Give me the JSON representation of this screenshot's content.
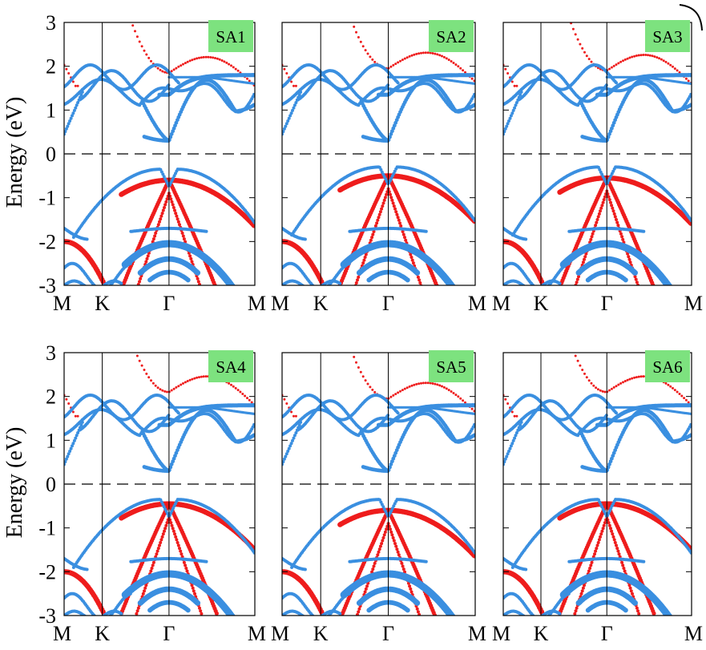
{
  "colors": {
    "blue": "#3a8fe0",
    "red": "#ee1c1c",
    "tag_bg": "#7de27f",
    "axis": "#000000"
  },
  "figure": {
    "ylabel": "Energy (eV)"
  },
  "chart_data": {
    "type": "scatter",
    "ylim": [
      -3,
      3
    ],
    "yticks": [
      -3,
      -2,
      -1,
      0,
      1,
      2,
      3
    ],
    "ytick_labels": [
      "-3",
      "-2",
      "-1",
      "0",
      "1",
      "2",
      "3"
    ],
    "kpath": [
      "M",
      "K",
      "Γ",
      "M"
    ],
    "xticks": [
      0,
      0.2,
      0.55,
      1.0
    ],
    "fermi_level": 0,
    "grid": false,
    "panels": [
      {
        "label": "SA1",
        "cbm": 0.3,
        "vbm": -0.3,
        "red_top": -0.6,
        "red_cb": 1.85
      },
      {
        "label": "SA2",
        "cbm": 0.3,
        "vbm": -0.25,
        "red_top": -0.5,
        "red_cb": 1.95
      },
      {
        "label": "SA3",
        "cbm": 0.3,
        "vbm": -0.25,
        "red_top": -0.55,
        "red_cb": 1.9
      },
      {
        "label": "SA4",
        "cbm": 0.3,
        "vbm": -0.3,
        "red_top": -0.45,
        "red_cb": 2.1
      },
      {
        "label": "SA5",
        "cbm": 0.3,
        "vbm": -0.3,
        "red_top": -0.6,
        "red_cb": 1.95
      },
      {
        "label": "SA6",
        "cbm": 0.3,
        "vbm": -0.3,
        "red_top": -0.45,
        "red_cb": 2.1
      }
    ]
  }
}
